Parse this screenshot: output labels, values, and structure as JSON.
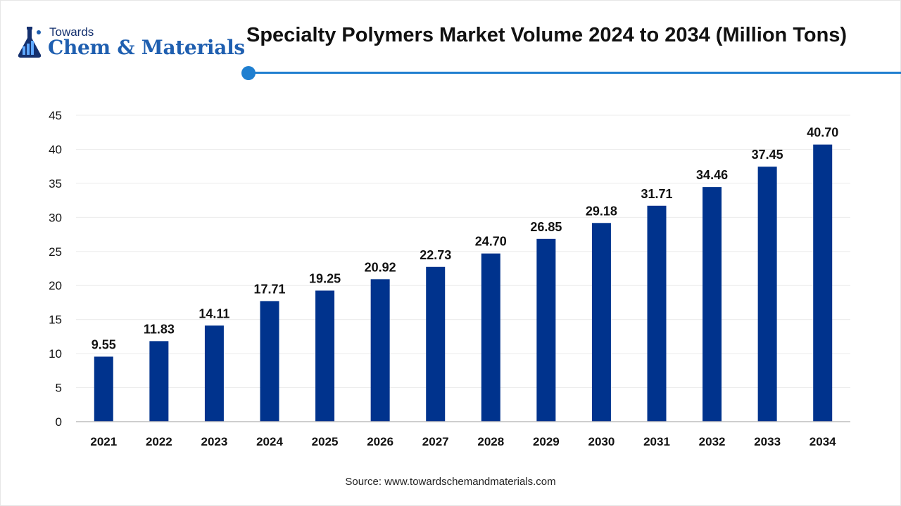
{
  "logo": {
    "line1": "Towards",
    "line2": "Chem & Materials"
  },
  "colors": {
    "bar": "#00338d",
    "accent": "#1f7fd0",
    "grid": "#ececec",
    "axis": "#bdbdbd"
  },
  "chart_data": {
    "type": "bar",
    "title": "Specialty Polymers Market Volume 2024 to 2034 (Million Tons)",
    "categories": [
      "2021",
      "2022",
      "2023",
      "2024",
      "2025",
      "2026",
      "2027",
      "2028",
      "2029",
      "2030",
      "2031",
      "2032",
      "2033",
      "2034"
    ],
    "values": [
      9.55,
      11.83,
      14.11,
      17.71,
      19.25,
      20.92,
      22.73,
      24.7,
      26.85,
      29.18,
      31.71,
      34.46,
      37.45,
      40.7
    ],
    "value_labels": [
      "9.55",
      "11.83",
      "14.11",
      "17.71",
      "19.25",
      "20.92",
      "22.73",
      "24.70",
      "26.85",
      "29.18",
      "31.71",
      "34.46",
      "37.45",
      "40.70"
    ],
    "ylim": [
      0,
      45
    ],
    "yticks": [
      0,
      5,
      10,
      15,
      20,
      25,
      30,
      35,
      40,
      45
    ],
    "grid": true,
    "legend": "none"
  },
  "source": "Source: www.towardschemandmaterials.com"
}
